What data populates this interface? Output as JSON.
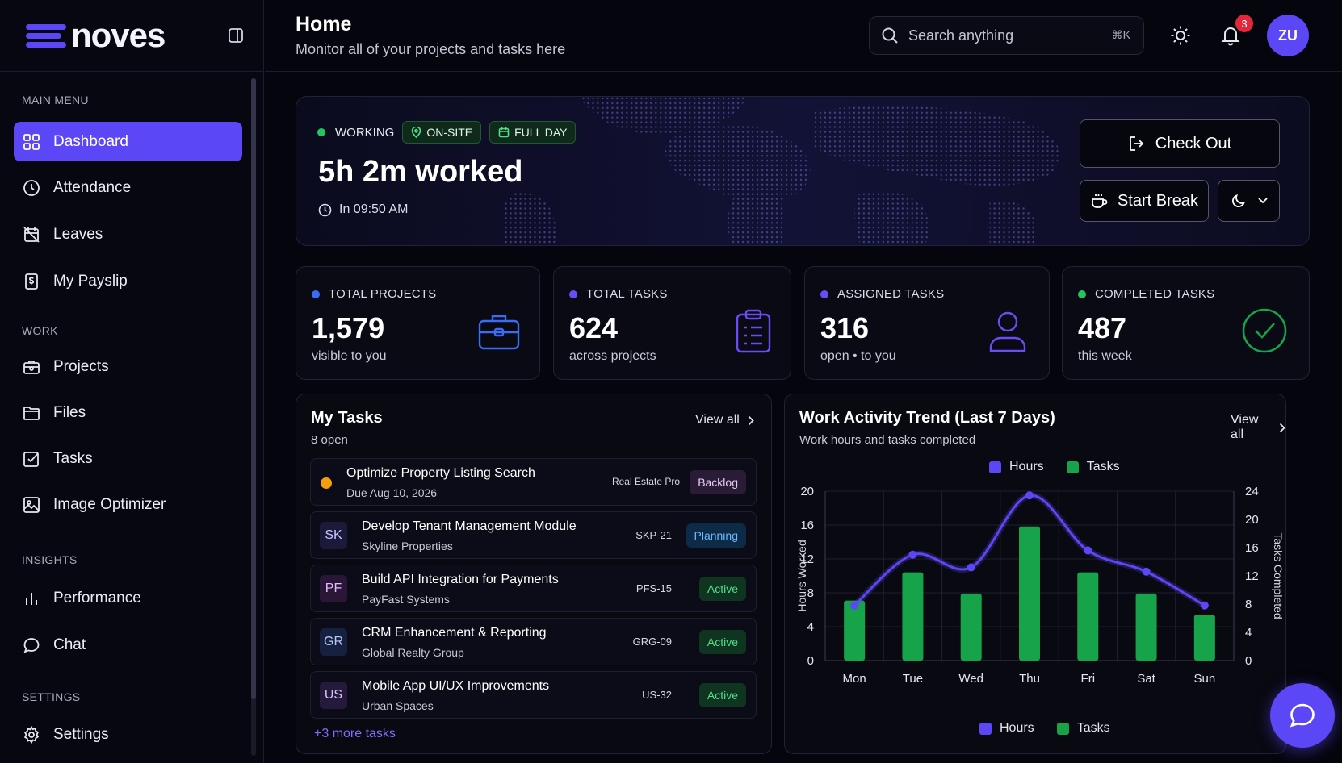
{
  "brand": {
    "name": "noves"
  },
  "sidebar": {
    "sections": {
      "main": "MAIN MENU",
      "work": "WORK",
      "insights": "INSIGHTS",
      "settings": "SETTINGS"
    },
    "items": [
      {
        "label": "Dashboard",
        "icon": "grid-icon",
        "active": true
      },
      {
        "label": "Attendance",
        "icon": "clock-icon"
      },
      {
        "label": "Leaves",
        "icon": "calendar-off-icon"
      },
      {
        "label": "My Payslip",
        "icon": "payslip-icon"
      },
      {
        "label": "Projects",
        "icon": "briefcase-icon"
      },
      {
        "label": "Files",
        "icon": "folder-icon"
      },
      {
        "label": "Tasks",
        "icon": "checkbox-icon"
      },
      {
        "label": "Image Optimizer",
        "icon": "image-icon"
      },
      {
        "label": "Performance",
        "icon": "bar-chart-icon"
      },
      {
        "label": "Chat",
        "icon": "chat-icon"
      },
      {
        "label": "Settings",
        "icon": "gear-icon"
      }
    ]
  },
  "header": {
    "title": "Home",
    "subtitle": "Monitor all of your projects and tasks here",
    "search": {
      "placeholder": "Search anything",
      "shortcut": "⌘K"
    },
    "notifications": "3",
    "avatar": "ZU"
  },
  "hero": {
    "status": "WORKING",
    "chips": [
      "ON-SITE",
      "FULL DAY"
    ],
    "worked": "5h 2m worked",
    "clock_in": "In 09:50 AM",
    "check_out": "Check Out",
    "start_break": "Start Break"
  },
  "stats": [
    {
      "label": "TOTAL PROJECTS",
      "value": "1,579",
      "caption": "visible to you",
      "color": "#3b6cf6"
    },
    {
      "label": "TOTAL TASKS",
      "value": "624",
      "caption": "across projects",
      "color": "#6a4cf5"
    },
    {
      "label": "ASSIGNED TASKS",
      "value": "316",
      "caption": "open • to you",
      "color": "#6a4cf5"
    },
    {
      "label": "COMPLETED TASKS",
      "value": "487",
      "caption": "this week",
      "color": "#22c55e"
    }
  ],
  "my_tasks": {
    "title": "My Tasks",
    "subtitle": "8 open",
    "view_all": "View all",
    "rows": [
      {
        "initials": "",
        "title": "Optimize Property Listing Search",
        "sub": "Due Aug 10, 2026",
        "code": "Real Estate Pro",
        "status": "Backlog"
      },
      {
        "initials": "SK",
        "title": "Develop Tenant Management Module",
        "sub": "Skyline Properties",
        "code": "SKP-21",
        "status": "Planning"
      },
      {
        "initials": "PF",
        "title": "Build API Integration for Payments",
        "sub": "PayFast Systems",
        "code": "PFS-15",
        "status": "Active"
      },
      {
        "initials": "GR",
        "title": "CRM Enhancement & Reporting",
        "sub": "Global Realty Group",
        "code": "GRG-09",
        "status": "Active"
      },
      {
        "initials": "US",
        "title": "Mobile App UI/UX Improvements",
        "sub": "Urban Spaces",
        "code": "US-32",
        "status": "Active"
      }
    ],
    "more": "+3 more tasks"
  },
  "activity": {
    "title": "Work Activity Trend (Last 7 Days)",
    "subtitle": "Work hours and tasks completed",
    "view_all": "View all"
  },
  "chart_data": {
    "type": "bar",
    "categories": [
      "Mon",
      "Tue",
      "Wed",
      "Thu",
      "Fri",
      "Sat",
      "Sun"
    ],
    "series": [
      {
        "name": "Hours",
        "type": "line",
        "axis": "left",
        "color": "#5b47f5",
        "values": [
          6.5,
          12.5,
          11,
          19.5,
          13,
          10.5,
          6.5
        ]
      },
      {
        "name": "Tasks",
        "type": "bar",
        "axis": "right",
        "color": "#16a34a",
        "values": [
          8.5,
          12.5,
          9.5,
          19,
          12.5,
          9.5,
          6.5
        ]
      }
    ],
    "ylabel": "Hours Worked",
    "y2label": "Tasks Completed",
    "ylim": [
      0,
      20
    ],
    "y2lim": [
      0,
      24
    ],
    "yticks": [
      0,
      4,
      8,
      12,
      16,
      20
    ],
    "y2ticks": [
      0,
      4,
      8,
      12,
      16,
      20,
      24
    ],
    "legend": [
      "Hours",
      "Tasks"
    ],
    "grid": true
  }
}
